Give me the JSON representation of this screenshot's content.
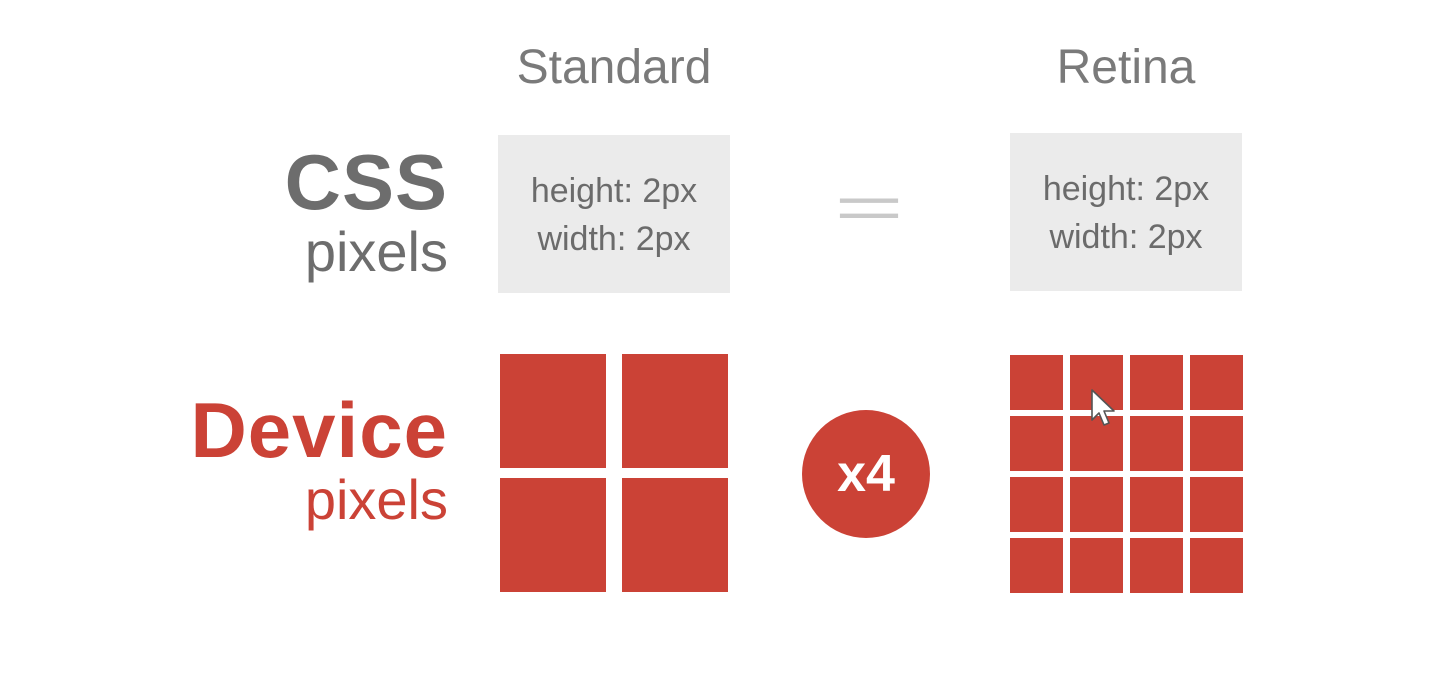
{
  "columns": {
    "standard_title": "Standard",
    "retina_title": "Retina"
  },
  "rows": {
    "css": {
      "title": "CSS",
      "subtitle": "pixels"
    },
    "device": {
      "title": "Device",
      "subtitle": "pixels"
    }
  },
  "standard_box": {
    "height_text": "height: 2px",
    "width_text": "width: 2px"
  },
  "retina_box": {
    "height_text": "height: 2px",
    "width_text": "width: 2px"
  },
  "equals_symbol": "==",
  "multiplier_label": "x4",
  "standard_grid": {
    "rows": 2,
    "cols": 2
  },
  "retina_grid": {
    "rows": 4,
    "cols": 4
  },
  "colors": {
    "accent_red": "#cb4236",
    "css_gray": "#6d6d6d",
    "box_gray": "#ebebeb",
    "equals_gray": "#c9c9c9"
  },
  "icons": {
    "cursor": "mouse-cursor-icon"
  }
}
